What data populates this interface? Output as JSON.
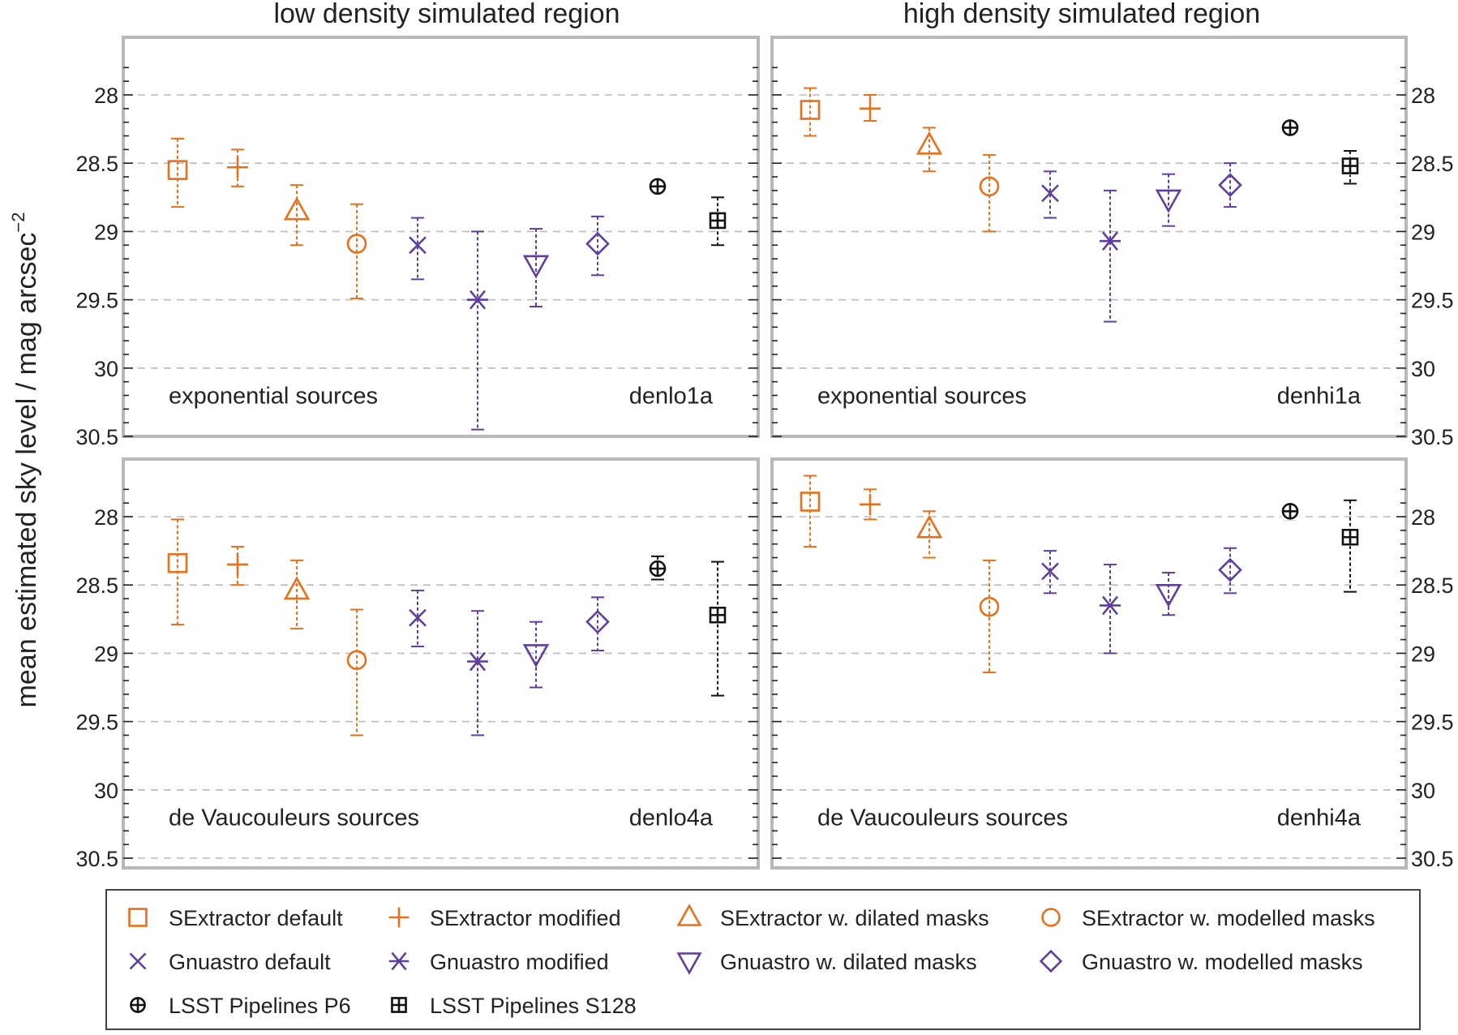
{
  "figure": {
    "column_titles": [
      "low density simulated region",
      "high density simulated region"
    ],
    "ylabel": "mean estimated sky level / mag arcsec",
    "ylabel_sup": "−2"
  },
  "colors": {
    "sextractor": "#e8701a",
    "gnuastro": "#5f3f9e",
    "lsst": "#111111",
    "grid": "#bbbbbb",
    "frame": "#b8b8b8"
  },
  "methods": [
    {
      "key": "se_def",
      "label": "SExtractor default",
      "marker": "square",
      "group": "sextractor"
    },
    {
      "key": "se_mod",
      "label": "SExtractor modified",
      "marker": "plus",
      "group": "sextractor"
    },
    {
      "key": "se_dil",
      "label": "SExtractor w. dilated masks",
      "marker": "triangle-up",
      "group": "sextractor"
    },
    {
      "key": "se_mdl",
      "label": "SExtractor w. modelled masks",
      "marker": "circle",
      "group": "sextractor"
    },
    {
      "key": "gn_def",
      "label": "Gnuastro default",
      "marker": "x",
      "group": "gnuastro"
    },
    {
      "key": "gn_mod",
      "label": "Gnuastro modified",
      "marker": "asterisk",
      "group": "gnuastro"
    },
    {
      "key": "gn_dil",
      "label": "Gnuastro w. dilated masks",
      "marker": "triangle-down",
      "group": "gnuastro"
    },
    {
      "key": "gn_mdl",
      "label": "Gnuastro w. modelled masks",
      "marker": "diamond",
      "group": "gnuastro"
    },
    {
      "key": "lsst_p6",
      "label": "LSST Pipelines P6",
      "marker": "circle-plus",
      "group": "lsst"
    },
    {
      "key": "lsst_s128",
      "label": "LSST Pipelines S128",
      "marker": "square-plus",
      "group": "lsst"
    }
  ],
  "chart_data": [
    {
      "type": "scatter",
      "panel": "top-left",
      "title": "denlo1a",
      "annotation": "exponential sources",
      "ylim": [
        27.8,
        30.5
      ],
      "y_inverted": true,
      "yticks": [
        "28",
        "28.5",
        "29",
        "29.5",
        "30",
        "30.5"
      ],
      "points": [
        {
          "method": "se_def",
          "y": 28.55,
          "ylo": 28.32,
          "yhi": 28.82
        },
        {
          "method": "se_mod",
          "y": 28.53,
          "ylo": 28.4,
          "yhi": 28.67
        },
        {
          "method": "se_dil",
          "y": 28.85,
          "ylo": 28.66,
          "yhi": 29.1
        },
        {
          "method": "se_mdl",
          "y": 29.09,
          "ylo": 28.8,
          "yhi": 29.49
        },
        {
          "method": "gn_def",
          "y": 29.1,
          "ylo": 28.9,
          "yhi": 29.35
        },
        {
          "method": "gn_mod",
          "y": 29.5,
          "ylo": 29.0,
          "yhi": 30.45
        },
        {
          "method": "gn_dil",
          "y": 29.24,
          "ylo": 28.98,
          "yhi": 29.55
        },
        {
          "method": "gn_mdl",
          "y": 29.09,
          "ylo": 28.89,
          "yhi": 29.32
        },
        {
          "method": "lsst_p6",
          "y": 28.67,
          "ylo": 28.67,
          "yhi": 28.67
        },
        {
          "method": "lsst_s128",
          "y": 28.92,
          "ylo": 28.75,
          "yhi": 29.1
        }
      ]
    },
    {
      "type": "scatter",
      "panel": "top-right",
      "title": "denhi1a",
      "annotation": "exponential sources",
      "ylim": [
        27.8,
        30.5
      ],
      "y_inverted": true,
      "yticks": [
        "28",
        "28.5",
        "29",
        "29.5",
        "30",
        "30.5"
      ],
      "points": [
        {
          "method": "se_def",
          "y": 28.11,
          "ylo": 27.95,
          "yhi": 28.3
        },
        {
          "method": "se_mod",
          "y": 28.1,
          "ylo": 28.0,
          "yhi": 28.19
        },
        {
          "method": "se_dil",
          "y": 28.37,
          "ylo": 28.24,
          "yhi": 28.56
        },
        {
          "method": "se_mdl",
          "y": 28.67,
          "ylo": 28.44,
          "yhi": 29.0
        },
        {
          "method": "gn_def",
          "y": 28.72,
          "ylo": 28.56,
          "yhi": 28.9
        },
        {
          "method": "gn_mod",
          "y": 29.07,
          "ylo": 28.7,
          "yhi": 29.66
        },
        {
          "method": "gn_dil",
          "y": 28.76,
          "ylo": 28.58,
          "yhi": 28.96
        },
        {
          "method": "gn_mdl",
          "y": 28.66,
          "ylo": 28.5,
          "yhi": 28.82
        },
        {
          "method": "lsst_p6",
          "y": 28.24,
          "ylo": 28.24,
          "yhi": 28.24
        },
        {
          "method": "lsst_s128",
          "y": 28.52,
          "ylo": 28.41,
          "yhi": 28.65
        }
      ]
    },
    {
      "type": "scatter",
      "panel": "bottom-left",
      "title": "denlo4a",
      "annotation": "de Vaucouleurs sources",
      "ylim": [
        27.8,
        30.5
      ],
      "y_inverted": true,
      "yticks": [
        "28",
        "28.5",
        "29",
        "29.5",
        "30",
        "30.5"
      ],
      "points": [
        {
          "method": "se_def",
          "y": 28.34,
          "ylo": 28.02,
          "yhi": 28.79
        },
        {
          "method": "se_mod",
          "y": 28.35,
          "ylo": 28.22,
          "yhi": 28.5
        },
        {
          "method": "se_dil",
          "y": 28.54,
          "ylo": 28.32,
          "yhi": 28.82
        },
        {
          "method": "se_mdl",
          "y": 29.05,
          "ylo": 28.68,
          "yhi": 29.6
        },
        {
          "method": "gn_def",
          "y": 28.74,
          "ylo": 28.54,
          "yhi": 28.95
        },
        {
          "method": "gn_mod",
          "y": 29.06,
          "ylo": 28.69,
          "yhi": 29.6
        },
        {
          "method": "gn_dil",
          "y": 29.0,
          "ylo": 28.77,
          "yhi": 29.25
        },
        {
          "method": "gn_mdl",
          "y": 28.77,
          "ylo": 28.59,
          "yhi": 28.98
        },
        {
          "method": "lsst_p6",
          "y": 28.38,
          "ylo": 28.29,
          "yhi": 28.46
        },
        {
          "method": "lsst_s128",
          "y": 28.72,
          "ylo": 28.33,
          "yhi": 29.31
        }
      ]
    },
    {
      "type": "scatter",
      "panel": "bottom-right",
      "title": "denhi4a",
      "annotation": "de Vaucouleurs sources",
      "ylim": [
        27.8,
        30.5
      ],
      "y_inverted": true,
      "yticks": [
        "28",
        "28.5",
        "29",
        "29.5",
        "30",
        "30.5"
      ],
      "points": [
        {
          "method": "se_def",
          "y": 27.89,
          "ylo": 27.7,
          "yhi": 28.22
        },
        {
          "method": "se_mod",
          "y": 27.91,
          "ylo": 27.8,
          "yhi": 28.02
        },
        {
          "method": "se_dil",
          "y": 28.09,
          "ylo": 27.96,
          "yhi": 28.3
        },
        {
          "method": "se_mdl",
          "y": 28.66,
          "ylo": 28.32,
          "yhi": 29.14
        },
        {
          "method": "gn_def",
          "y": 28.4,
          "ylo": 28.25,
          "yhi": 28.56
        },
        {
          "method": "gn_mod",
          "y": 28.65,
          "ylo": 28.35,
          "yhi": 29.0
        },
        {
          "method": "gn_dil",
          "y": 28.56,
          "ylo": 28.41,
          "yhi": 28.72
        },
        {
          "method": "gn_mdl",
          "y": 28.39,
          "ylo": 28.23,
          "yhi": 28.56
        },
        {
          "method": "lsst_p6",
          "y": 27.96,
          "ylo": 27.96,
          "yhi": 28.02
        },
        {
          "method": "lsst_s128",
          "y": 28.15,
          "ylo": 27.88,
          "yhi": 28.55
        }
      ]
    }
  ]
}
